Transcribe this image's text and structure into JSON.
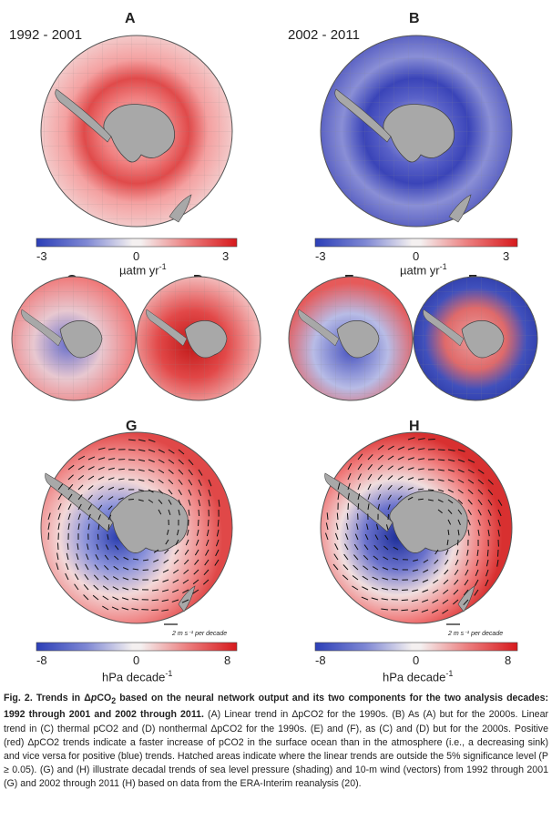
{
  "panels": {
    "A": {
      "label": "A",
      "period": "1992 - 2001"
    },
    "B": {
      "label": "B",
      "period": "2002 - 2011"
    },
    "C": {
      "label": "C"
    },
    "D": {
      "label": "D"
    },
    "E": {
      "label": "E"
    },
    "F": {
      "label": "F"
    },
    "G": {
      "label": "G",
      "wind_scale": "2 m s⁻¹ per decade"
    },
    "H": {
      "label": "H",
      "wind_scale": "2 m s⁻¹ per decade"
    }
  },
  "colorbars": {
    "pco2": {
      "min": "-3",
      "mid": "0",
      "max": "3",
      "unit": "µatm yr",
      "unit_exp": "-1"
    },
    "slp": {
      "min": "-8",
      "mid": "0",
      "max": "8",
      "unit": "hPa decade",
      "unit_exp": "-1"
    }
  },
  "colors": {
    "red": "#d7191c",
    "blue": "#2c3fb8",
    "land": "#a8a8a8",
    "white": "#f4f0f0"
  },
  "caption": {
    "fig": "Fig. 2.",
    "title_a": "Trends in Δ",
    "title_p": "p",
    "title_b": "CO",
    "title_sub": "2",
    "title_c": " based on the neural network output and its two components for the two analysis decades: 1992 through 2001 and 2002 through 2011.",
    "body": " (A) Linear trend in ΔpCO2 for the 1990s. (B) As (A) but for the 2000s. Linear trend in (C) thermal pCO2 and (D) nonthermal ΔpCO2 for the 1990s. (E) and (F), as (C) and (D) but for the 2000s. Positive (red) ΔpCO2 trends indicate a faster increase of pCO2 in the surface ocean than in the atmosphere (i.e., a decreasing sink) and vice versa for positive (blue) trends. Hatched areas indicate where the linear trends are outside the 5% significance level (P ≥ 0.05). (G) and (H) illustrate decadal trends of sea level pressure (shading) and 10-m wind (vectors) from 1992 through 2001 (G) and 2002 through 2011 (H) based on data from the ERA-Interim reanalysis (20)."
  }
}
